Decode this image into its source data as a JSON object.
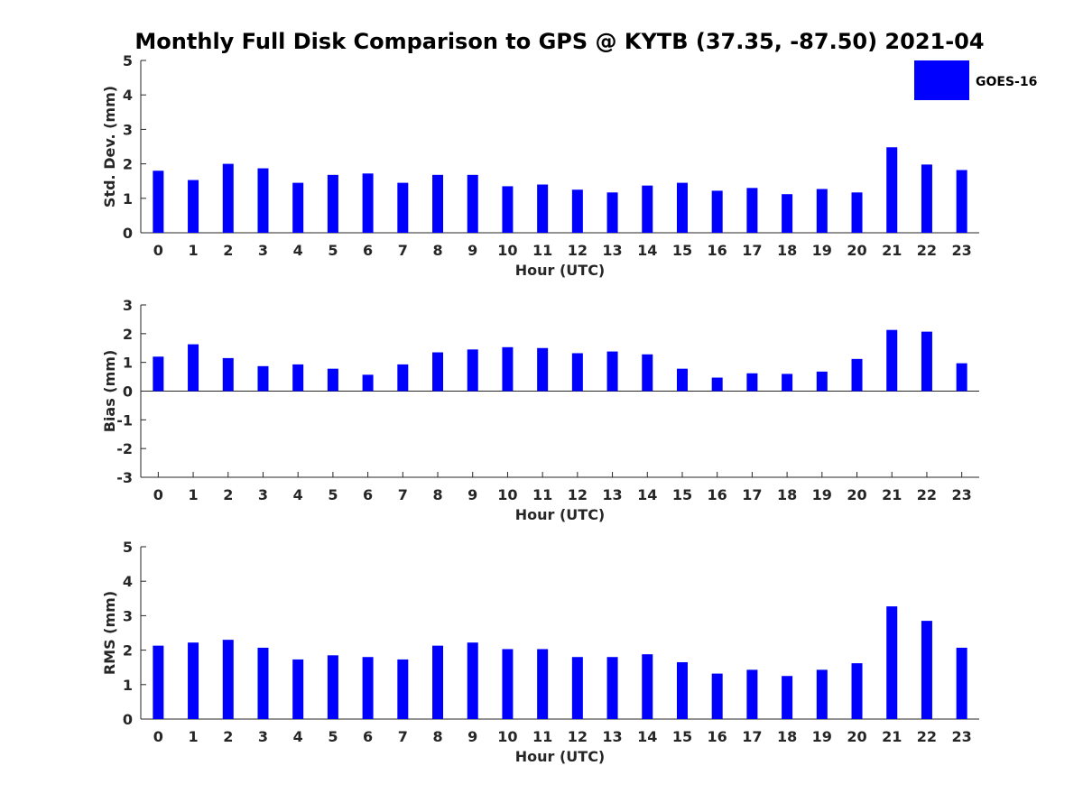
{
  "figure": {
    "title": "Monthly Full Disk Comparison to GPS @ KYTB (37.35, -87.50) 2021-04"
  },
  "legend": {
    "label": "GOES-16",
    "color": "#0000ff"
  },
  "chart_data": [
    {
      "type": "bar",
      "ylabel": "Std. Dev. (mm)",
      "xlabel": "Hour (UTC)",
      "ylim": [
        0,
        5
      ],
      "yticks": [
        "0",
        "1",
        "2",
        "3",
        "4",
        "5"
      ],
      "categories": [
        "0",
        "1",
        "2",
        "3",
        "4",
        "5",
        "6",
        "7",
        "8",
        "9",
        "10",
        "11",
        "12",
        "13",
        "14",
        "15",
        "16",
        "17",
        "18",
        "19",
        "20",
        "21",
        "22",
        "23"
      ],
      "series": [
        {
          "name": "GOES-16",
          "values": [
            1.8,
            1.53,
            2.0,
            1.87,
            1.45,
            1.68,
            1.72,
            1.45,
            1.68,
            1.68,
            1.35,
            1.4,
            1.25,
            1.17,
            1.37,
            1.45,
            1.22,
            1.3,
            1.12,
            1.27,
            1.17,
            2.48,
            1.98,
            1.82
          ]
        }
      ]
    },
    {
      "type": "bar",
      "ylabel": "Bias (mm)",
      "xlabel": "Hour (UTC)",
      "ylim": [
        -3,
        3
      ],
      "yticks": [
        "-3",
        "-2",
        "-1",
        "0",
        "1",
        "2",
        "3"
      ],
      "categories": [
        "0",
        "1",
        "2",
        "3",
        "4",
        "5",
        "6",
        "7",
        "8",
        "9",
        "10",
        "11",
        "12",
        "13",
        "14",
        "15",
        "16",
        "17",
        "18",
        "19",
        "20",
        "21",
        "22",
        "23"
      ],
      "series": [
        {
          "name": "GOES-16",
          "values": [
            1.2,
            1.63,
            1.15,
            0.87,
            0.93,
            0.78,
            0.57,
            0.93,
            1.35,
            1.45,
            1.53,
            1.5,
            1.32,
            1.38,
            1.28,
            0.78,
            0.47,
            0.62,
            0.6,
            0.68,
            1.12,
            2.13,
            2.07,
            0.97
          ]
        }
      ]
    },
    {
      "type": "bar",
      "ylabel": "RMS (mm)",
      "xlabel": "Hour (UTC)",
      "ylim": [
        0,
        5
      ],
      "yticks": [
        "0",
        "1",
        "2",
        "3",
        "4",
        "5"
      ],
      "categories": [
        "0",
        "1",
        "2",
        "3",
        "4",
        "5",
        "6",
        "7",
        "8",
        "9",
        "10",
        "11",
        "12",
        "13",
        "14",
        "15",
        "16",
        "17",
        "18",
        "19",
        "20",
        "21",
        "22",
        "23"
      ],
      "series": [
        {
          "name": "GOES-16",
          "values": [
            2.13,
            2.22,
            2.3,
            2.07,
            1.73,
            1.85,
            1.8,
            1.73,
            2.13,
            2.22,
            2.03,
            2.03,
            1.8,
            1.8,
            1.88,
            1.65,
            1.32,
            1.43,
            1.25,
            1.43,
            1.62,
            3.27,
            2.85,
            2.07
          ]
        }
      ]
    }
  ]
}
